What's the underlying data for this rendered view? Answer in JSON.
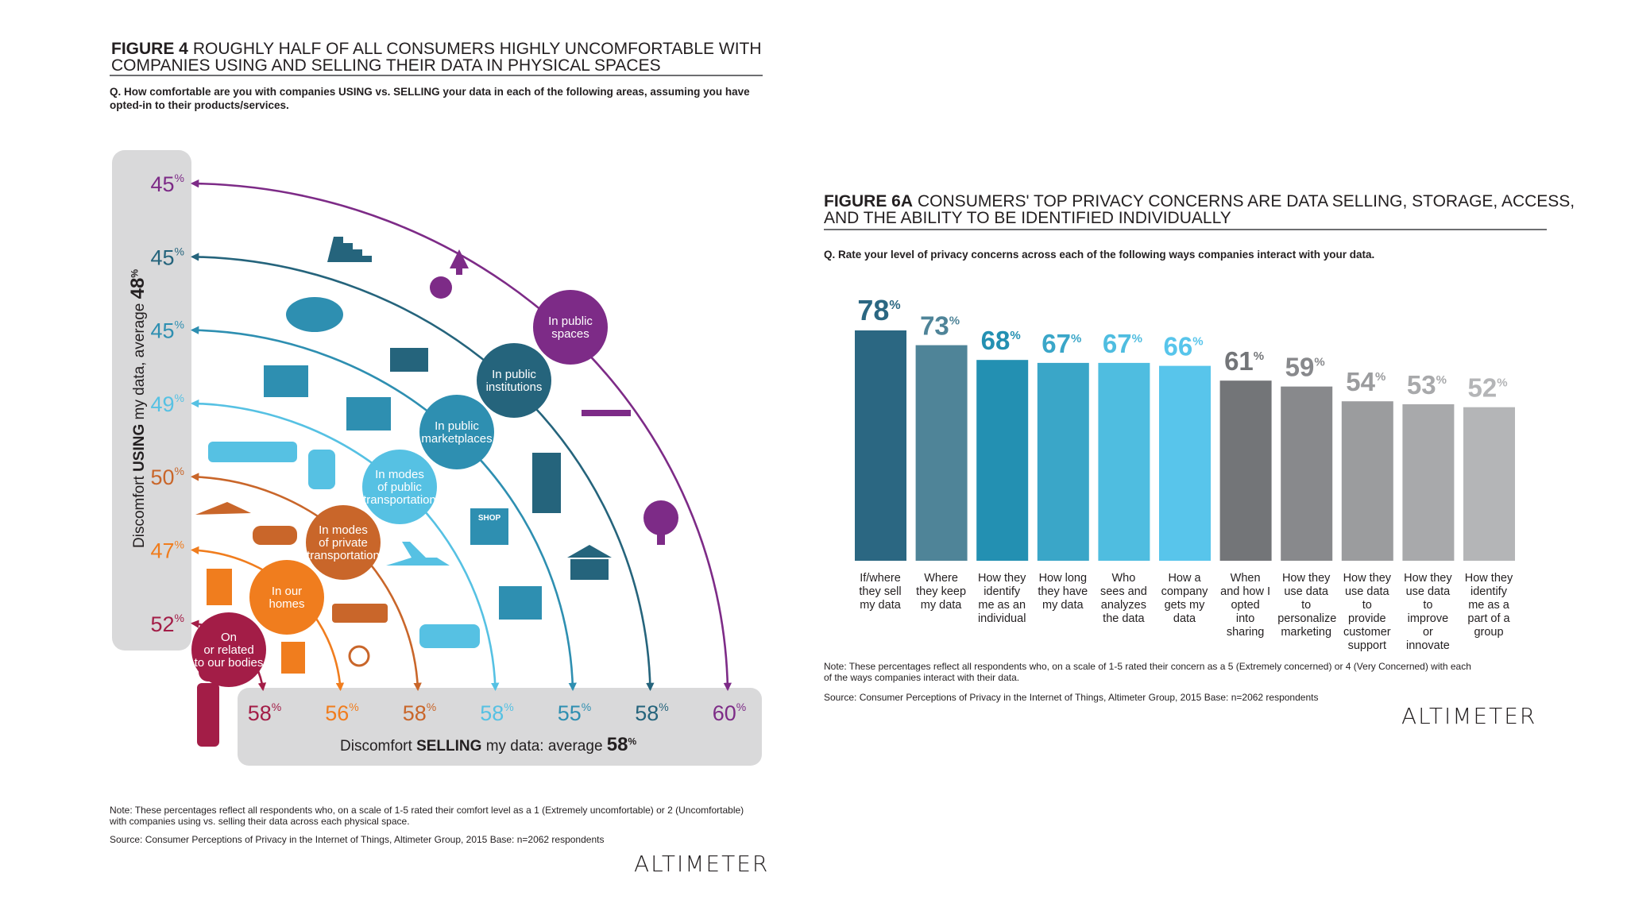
{
  "figure4": {
    "tag": "FIGURE 4",
    "title_line1": "ROUGHLY HALF OF ALL CONSUMERS HIGHLY UNCOMFORTABLE WITH",
    "title_line2": "COMPANIES USING AND SELLING THEIR DATA IN PHYSICAL SPACES",
    "question_line1": "Q. How comfortable are you with companies USING vs. SELLING your data in each of the following areas, assuming you have",
    "question_line2": "opted-in to their products/services.",
    "y_axis_prefix": "Discomfort ",
    "y_axis_bold": "USING",
    "y_axis_mid": " my data, average ",
    "y_axis_avg": "48",
    "x_axis_prefix": "Discomfort ",
    "x_axis_bold": "SELLING",
    "x_axis_mid": " my data: average ",
    "x_axis_avg": "58",
    "pct_sign": "%",
    "note_line1": "Note: These percentages reflect all respondents who, on a scale of 1-5 rated their comfort level as a 1 (Extremely uncomfortable) or 2 (Uncomfortable)",
    "note_line2": "with companies using vs. selling their data across each physical space.",
    "source": "Source: Consumer Perceptions of Privacy in the Internet of Things, Altimeter Group, 2015  Base: n=2062 respondents",
    "logo": "ALTIMETER",
    "shop_sign": "SHOP",
    "colors": {
      "bodies": "#a31d47",
      "homes": "#f07d1e",
      "private_transport": "#c9662a",
      "public_transport": "#56c1e3",
      "marketplaces": "#2e8fb1",
      "institutions": "#25647c",
      "public_spaces": "#7d2b87",
      "panel": "#d9d9da"
    }
  },
  "chart_data": [
    {
      "type": "arc-diagram",
      "title": "ROUGHLY HALF OF ALL CONSUMERS HIGHLY UNCOMFORTABLE WITH COMPANIES USING AND SELLING THEIR DATA IN PHYSICAL SPACES",
      "ylabel": "Discomfort USING my data, average 48%",
      "xlabel": "Discomfort SELLING my data: average 58%",
      "categories": [
        "In public spaces",
        "In public institutions",
        "In public marketplaces",
        "In modes of public transportation",
        "In modes of private transportation",
        "In our homes",
        "On or related to our bodies"
      ],
      "category_lines": [
        [
          "In public",
          "spaces"
        ],
        [
          "In public",
          "institutions"
        ],
        [
          "In public",
          "marketplaces"
        ],
        [
          "In modes",
          "of public",
          "transportation"
        ],
        [
          "In modes",
          "of private",
          "transportation"
        ],
        [
          "In our",
          "homes"
        ],
        [
          "On",
          "or related",
          "to our bodies"
        ]
      ],
      "series": [
        {
          "name": "Discomfort USING",
          "values": [
            45,
            45,
            45,
            49,
            50,
            47,
            52
          ]
        },
        {
          "name": "Discomfort SELLING",
          "values": [
            60,
            58,
            55,
            58,
            58,
            56,
            58
          ]
        }
      ],
      "averages": {
        "using": 48,
        "selling": 58
      }
    },
    {
      "type": "bar",
      "title": "CONSUMERS' TOP PRIVACY CONCERNS ARE DATA SELLING, STORAGE, ACCESS, AND THE ABILITY TO BE IDENTIFIED INDIVIDUALLY",
      "categories": [
        "If/where they sell my data",
        "Where they keep my data",
        "How they identify me as an individual",
        "How long they have my data",
        "Who sees and analyzes the data",
        "How a company gets my data",
        "When and how I opted into sharing",
        "How they use data to personalize marketing",
        "How they use data to provide customer support",
        "How they use data to improve or innovate",
        "How they identify me as part of a group"
      ],
      "category_lines": [
        [
          "If/where",
          "they sell",
          "my data"
        ],
        [
          "Where",
          "they keep",
          "my data"
        ],
        [
          "How they",
          "identify",
          "me as an",
          "individual"
        ],
        [
          "How long",
          "they have",
          "my data"
        ],
        [
          "Who",
          "sees and",
          "analyzes",
          "the data"
        ],
        [
          "How a",
          "company",
          "gets my",
          "data"
        ],
        [
          "When",
          "and how I",
          "opted",
          "into",
          "sharing"
        ],
        [
          "How they",
          "use data",
          "to",
          "personalize",
          "marketing"
        ],
        [
          "How they",
          "use data",
          "to",
          "provide",
          "customer",
          "support"
        ],
        [
          "How they",
          "use data",
          "to",
          "improve",
          "or",
          "innovate"
        ],
        [
          "How they",
          "identify",
          "me as a",
          "part of a",
          "group"
        ]
      ],
      "values": [
        78,
        73,
        68,
        67,
        67,
        66,
        61,
        59,
        54,
        53,
        52
      ],
      "value_unit": "%",
      "colors": [
        "#2b6782",
        "#4f8498",
        "#2390b2",
        "#3aa6c8",
        "#4fbde0",
        "#58c5eb",
        "#737578",
        "#88898c",
        "#9b9c9e",
        "#a8a9ab",
        "#b4b5b7"
      ],
      "ylim": [
        0,
        78
      ]
    }
  ],
  "figure6a": {
    "tag": "FIGURE 6A",
    "title_line1": "CONSUMERS' TOP PRIVACY CONCERNS ARE DATA SELLING, STORAGE, ACCESS,",
    "title_line2": "AND THE ABILITY TO BE IDENTIFIED INDIVIDUALLY",
    "question": "Q. Rate your level of privacy concerns across each of the following ways companies interact with your data.",
    "note_line1": "Note: These percentages reflect all respondents who, on a scale of 1-5 rated their concern as a 5 (Extremely concerned) or 4 (Very Concerned) with each",
    "note_line2": "of the ways companies interact with their data.",
    "source": "Source: Consumer Perceptions of Privacy in the Internet of Things, Altimeter Group, 2015 Base: n=2062 respondents",
    "logo": "ALTIMETER"
  }
}
